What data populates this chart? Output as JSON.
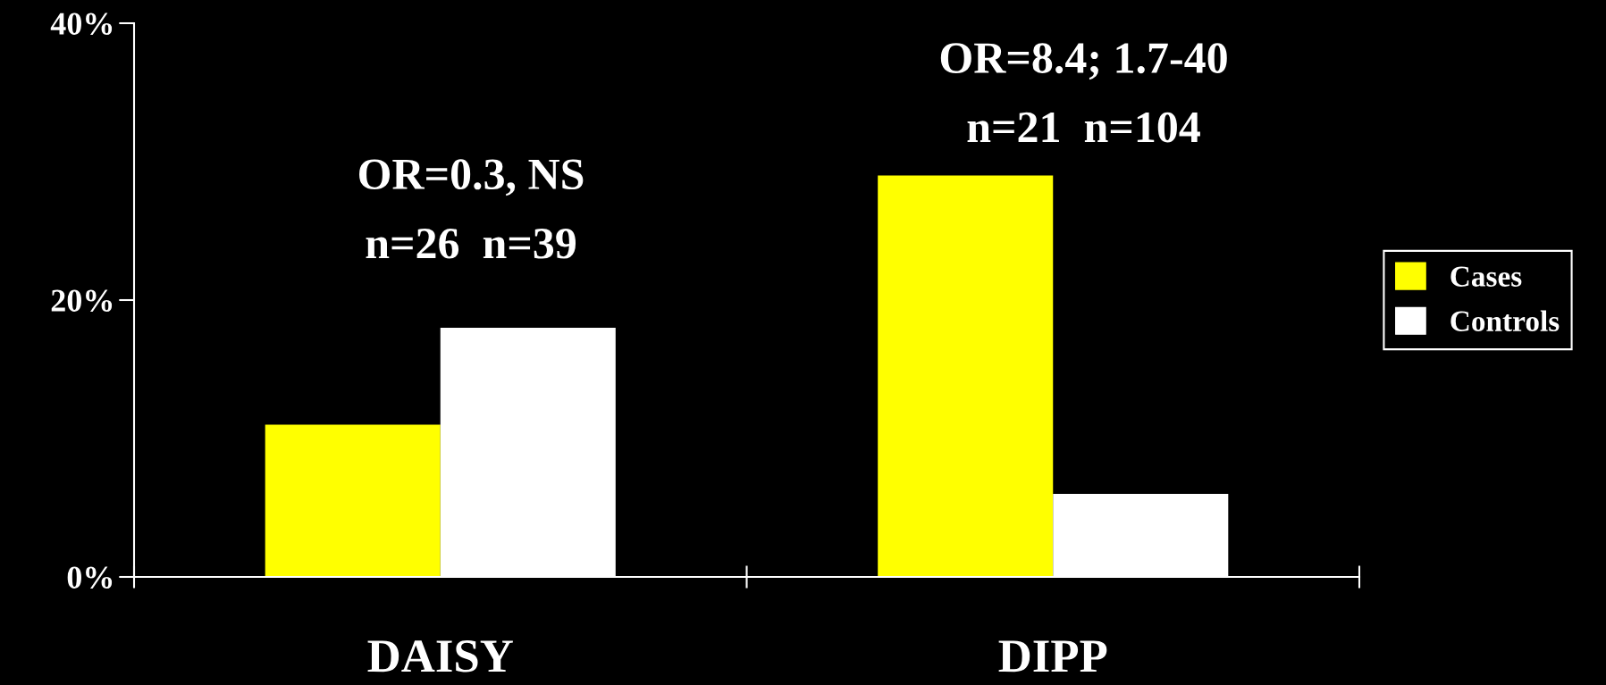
{
  "chart_data": {
    "type": "bar",
    "categories": [
      "DAISY",
      "DIPP"
    ],
    "series": [
      {
        "name": "Cases",
        "color": "#ffff00",
        "values": [
          11,
          29
        ]
      },
      {
        "name": "Controls",
        "color": "#ffffff",
        "values": [
          18,
          6
        ]
      }
    ],
    "ylim": [
      0,
      40
    ],
    "yticks": [
      {
        "value": 0,
        "label": "0%"
      },
      {
        "value": 20,
        "label": "20%"
      },
      {
        "value": 40,
        "label": "40%"
      }
    ],
    "annotations": [
      "OR=0.3, NS",
      "n=26  n=39",
      "OR=8.4; 1.7-40",
      "n=21  n=104"
    ],
    "grid": false,
    "legend": "right"
  }
}
